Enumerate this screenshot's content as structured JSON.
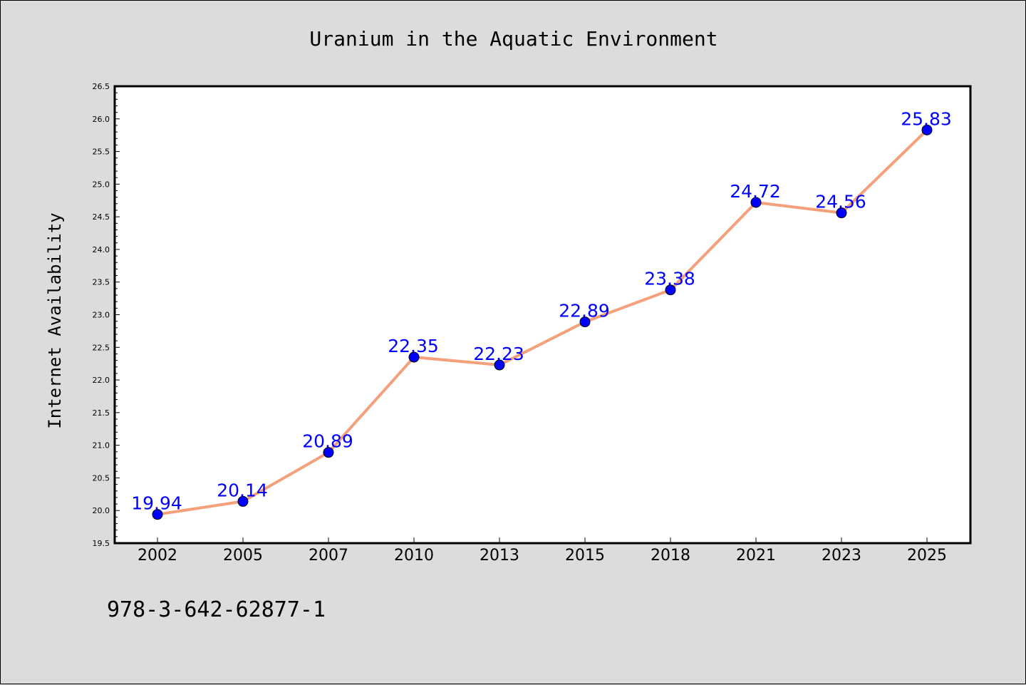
{
  "chart_data": {
    "type": "line",
    "title": "Uranium in the Aquatic Environment",
    "xlabel": "",
    "ylabel": "Internet Availability",
    "categories": [
      "2002",
      "2005",
      "2007",
      "2010",
      "2013",
      "2015",
      "2018",
      "2021",
      "2023",
      "2025"
    ],
    "series": [
      {
        "values": [
          19.94,
          20.14,
          20.89,
          22.35,
          22.23,
          22.89,
          23.38,
          24.72,
          24.56,
          25.83
        ],
        "data_labels": [
          "19.94",
          "20.14",
          "20.89",
          "22.35",
          "22.23",
          "22.89",
          "23.38",
          "24.72",
          "24.56",
          "25.83"
        ]
      }
    ],
    "ylim": [
      19.5,
      26.5
    ],
    "yticks": [
      "19.5",
      "20.0",
      "20.5",
      "21.0",
      "21.5",
      "22.0",
      "22.5",
      "23.0",
      "23.5",
      "24.0",
      "24.5",
      "25.0",
      "25.5",
      "26.0",
      "26.5"
    ],
    "grid": false,
    "line_color": "#f4a07a",
    "marker_color": "#0000ff",
    "label_color": "#0000ff"
  },
  "footnote": "978-3-642-62877-1"
}
